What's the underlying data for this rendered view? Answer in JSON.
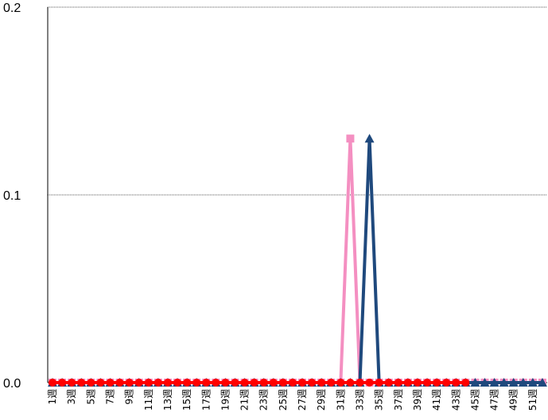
{
  "chart_data": {
    "type": "line",
    "title": "",
    "xlabel": "",
    "ylabel": "",
    "ylim": [
      0,
      0.2
    ],
    "yticks": [
      "0.0",
      "0.1",
      "0.2"
    ],
    "categories": [
      "1週",
      "2週",
      "3週",
      "4週",
      "5週",
      "6週",
      "7週",
      "8週",
      "9週",
      "10週",
      "11週",
      "12週",
      "13週",
      "14週",
      "15週",
      "16週",
      "17週",
      "18週",
      "19週",
      "20週",
      "21週",
      "22週",
      "23週",
      "24週",
      "25週",
      "26週",
      "27週",
      "28週",
      "29週",
      "30週",
      "31週",
      "32週",
      "33週",
      "34週",
      "35週",
      "36週",
      "37週",
      "38週",
      "39週",
      "40週",
      "41週",
      "42週",
      "43週",
      "44週",
      "45週",
      "46週",
      "47週",
      "48週",
      "49週",
      "50週",
      "51週",
      "52週"
    ],
    "visible_category_labels": [
      "1週",
      "3週",
      "5週",
      "7週",
      "9週",
      "11週",
      "13週",
      "15週",
      "17週",
      "19週",
      "21週",
      "23週",
      "25週",
      "27週",
      "29週",
      "31週",
      "33週",
      "35週",
      "37週",
      "39週",
      "41週",
      "43週",
      "45週",
      "47週",
      "49週",
      "51週"
    ],
    "grid": true,
    "series": [
      {
        "marker": "square",
        "color": "#f48fc1",
        "values": [
          0,
          0,
          0,
          0,
          0,
          0,
          0,
          0,
          0,
          0,
          0,
          0,
          0,
          0,
          0,
          0,
          0,
          0,
          0,
          0,
          0,
          0,
          0,
          0,
          0,
          0,
          0,
          0,
          0,
          0,
          0,
          0.13,
          0,
          0,
          0,
          0,
          0,
          0,
          0,
          0,
          0,
          0,
          0,
          0,
          0,
          0,
          0,
          0,
          0,
          0,
          0,
          0
        ]
      },
      {
        "marker": "triangle",
        "color": "#1f497d",
        "values": [
          0,
          0,
          0,
          0,
          0,
          0,
          0,
          0,
          0,
          0,
          0,
          0,
          0,
          0,
          0,
          0,
          0,
          0,
          0,
          0,
          0,
          0,
          0,
          0,
          0,
          0,
          0,
          0,
          0,
          0,
          0,
          0,
          0,
          0.13,
          0,
          0,
          0,
          0,
          0,
          0,
          0,
          0,
          0,
          0,
          0,
          0,
          0,
          0,
          0,
          0,
          0,
          0
        ]
      },
      {
        "marker": "circle",
        "color": "#ff0000",
        "values": [
          0,
          0,
          0,
          0,
          0,
          0,
          0,
          0,
          0,
          0,
          0,
          0,
          0,
          0,
          0,
          0,
          0,
          0,
          0,
          0,
          0,
          0,
          0,
          0,
          0,
          0,
          0,
          0,
          0,
          0,
          0,
          0,
          0,
          0,
          0,
          0,
          0,
          0,
          0,
          0,
          0,
          0,
          0,
          0,
          null,
          null,
          null,
          null,
          null,
          null,
          null,
          null
        ]
      }
    ]
  }
}
